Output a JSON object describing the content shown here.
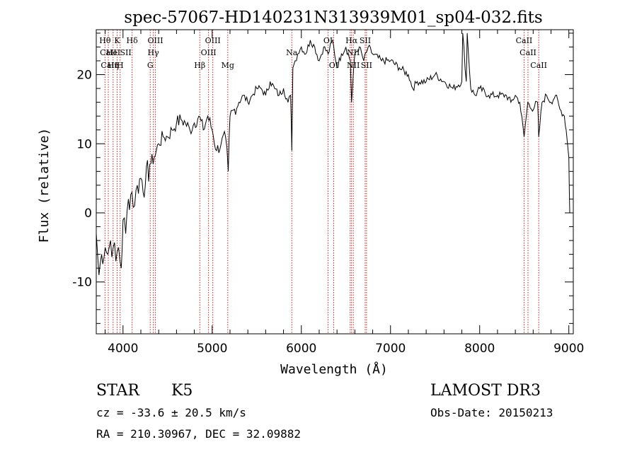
{
  "chart_data": {
    "type": "line",
    "title": "spec-57067-HD140231N313939M01_sp04-032.fits",
    "xlabel": "Wavelength (Å)",
    "ylabel": "Flux (relative)",
    "xlim": [
      3700,
      9050
    ],
    "ylim": [
      -17.5,
      26.5
    ],
    "xticks": [
      4000,
      5000,
      6000,
      7000,
      8000,
      9000
    ],
    "yticks": [
      -10,
      0,
      10,
      20
    ],
    "grid": false,
    "series": [
      {
        "x": [
          3700,
          3730,
          3760,
          3800,
          3830,
          3860,
          3890,
          3920,
          3950,
          3980,
          4000,
          4030,
          4060,
          4100,
          4130,
          4160,
          4200,
          4250,
          4300,
          4350,
          4400,
          4450,
          4500,
          4550,
          4600,
          4650,
          4700,
          4750,
          4800,
          4850,
          4900,
          4950,
          5000,
          5050,
          5100,
          5150,
          5180,
          5200,
          5250,
          5300,
          5350,
          5400,
          5450,
          5500,
          5550,
          5600,
          5650,
          5700,
          5750,
          5800,
          5850,
          5880,
          5893,
          5905,
          5930,
          5960,
          6000,
          6050,
          6100,
          6150,
          6200,
          6250,
          6300,
          6350,
          6400,
          6450,
          6500,
          6550,
          6563,
          6600,
          6650,
          6700,
          6750,
          6800,
          6900,
          7000,
          7100,
          7200,
          7250,
          7300,
          7400,
          7500,
          7600,
          7700,
          7800,
          7810,
          7850,
          7860,
          7900,
          7950,
          8000,
          8100,
          8200,
          8300,
          8350,
          8400,
          8450,
          8498,
          8540,
          8580,
          8650,
          8662,
          8700,
          8750,
          8800,
          8850,
          8900,
          8950,
          8970,
          9000,
          9010
        ],
        "y": [
          -3,
          -9,
          -6,
          -5,
          -6,
          -4,
          -5,
          -7,
          -5,
          -8,
          -1,
          -3,
          2,
          3,
          1,
          4,
          5,
          4,
          7,
          8,
          10,
          11,
          11,
          12,
          13,
          13.5,
          13,
          12,
          13,
          14,
          12,
          14,
          12,
          9,
          10,
          11,
          6,
          14,
          15,
          16,
          17,
          16,
          17,
          18,
          18,
          17,
          19,
          18,
          17,
          18,
          16,
          17,
          9,
          21,
          22,
          23,
          24,
          23,
          25,
          24,
          22,
          24,
          23,
          25,
          21,
          23,
          24,
          22,
          16,
          23,
          24,
          22,
          24,
          23,
          22,
          22,
          21,
          20,
          18,
          19,
          19,
          20,
          19,
          18,
          19,
          26,
          19,
          26,
          18,
          17,
          18,
          17,
          17,
          17,
          16,
          17,
          16,
          11,
          16,
          15,
          16,
          11,
          16,
          17,
          16,
          17,
          15,
          14,
          12,
          8,
          0
        ]
      }
    ],
    "line_labels": [
      {
        "text": "Hθ",
        "wave": 3798,
        "row": 1
      },
      {
        "text": "CaII",
        "wave": 3835,
        "row": 2
      },
      {
        "text": "CaII",
        "wave": 3845,
        "row": 3
      },
      {
        "text": "K",
        "wave": 3934,
        "row": 1
      },
      {
        "text": "HeI",
        "wave": 3890,
        "row": 2
      },
      {
        "text": "Hη",
        "wave": 3889,
        "row": 3
      },
      {
        "text": "SII",
        "wave": 4030,
        "row": 2
      },
      {
        "text": "H",
        "wave": 3968,
        "row": 3
      },
      {
        "text": "Hδ",
        "wave": 4102,
        "row": 1
      },
      {
        "text": "OIII",
        "wave": 4363,
        "row": 1
      },
      {
        "text": "Hγ",
        "wave": 4340,
        "row": 2
      },
      {
        "text": "G",
        "wave": 4305,
        "row": 3
      },
      {
        "text": "OIII",
        "wave": 5007,
        "row": 1
      },
      {
        "text": "OIII",
        "wave": 4959,
        "row": 2
      },
      {
        "text": "Hβ",
        "wave": 4861,
        "row": 3
      },
      {
        "text": "Mg",
        "wave": 5175,
        "row": 3
      },
      {
        "text": "Na",
        "wave": 5893,
        "row": 2
      },
      {
        "text": "OI",
        "wave": 6300,
        "row": 1
      },
      {
        "text": "OI",
        "wave": 6363,
        "row": 3
      },
      {
        "text": "Hα",
        "wave": 6563,
        "row": 1
      },
      {
        "text": "SII",
        "wave": 6716,
        "row": 1
      },
      {
        "text": "NII",
        "wave": 6583,
        "row": 2
      },
      {
        "text": "NII",
        "wave": 6583,
        "row": 3
      },
      {
        "text": "SII",
        "wave": 6731,
        "row": 3
      },
      {
        "text": "CaII",
        "wave": 8498,
        "row": 1
      },
      {
        "text": "CaII",
        "wave": 8542,
        "row": 2
      },
      {
        "text": "CaII",
        "wave": 8662,
        "row": 3
      }
    ],
    "line_markers": [
      3798,
      3835,
      3889,
      3934,
      3968,
      4102,
      4305,
      4340,
      4363,
      4861,
      4959,
      5007,
      5175,
      5893,
      6300,
      6363,
      6548,
      6563,
      6583,
      6716,
      6731,
      8498,
      8542,
      8662
    ],
    "colors": {
      "spectrum": "#000000",
      "markers": "#cc2222",
      "axes": "#000000"
    }
  },
  "info": {
    "object_class": "STAR",
    "subclass": "K5",
    "survey": "LAMOST DR3",
    "cz_line": "cz = -33.6 ± 20.5 km/s",
    "obs_date": "Obs-Date: 20150213",
    "coords": "RA = 210.30967, DEC =  32.09882"
  }
}
